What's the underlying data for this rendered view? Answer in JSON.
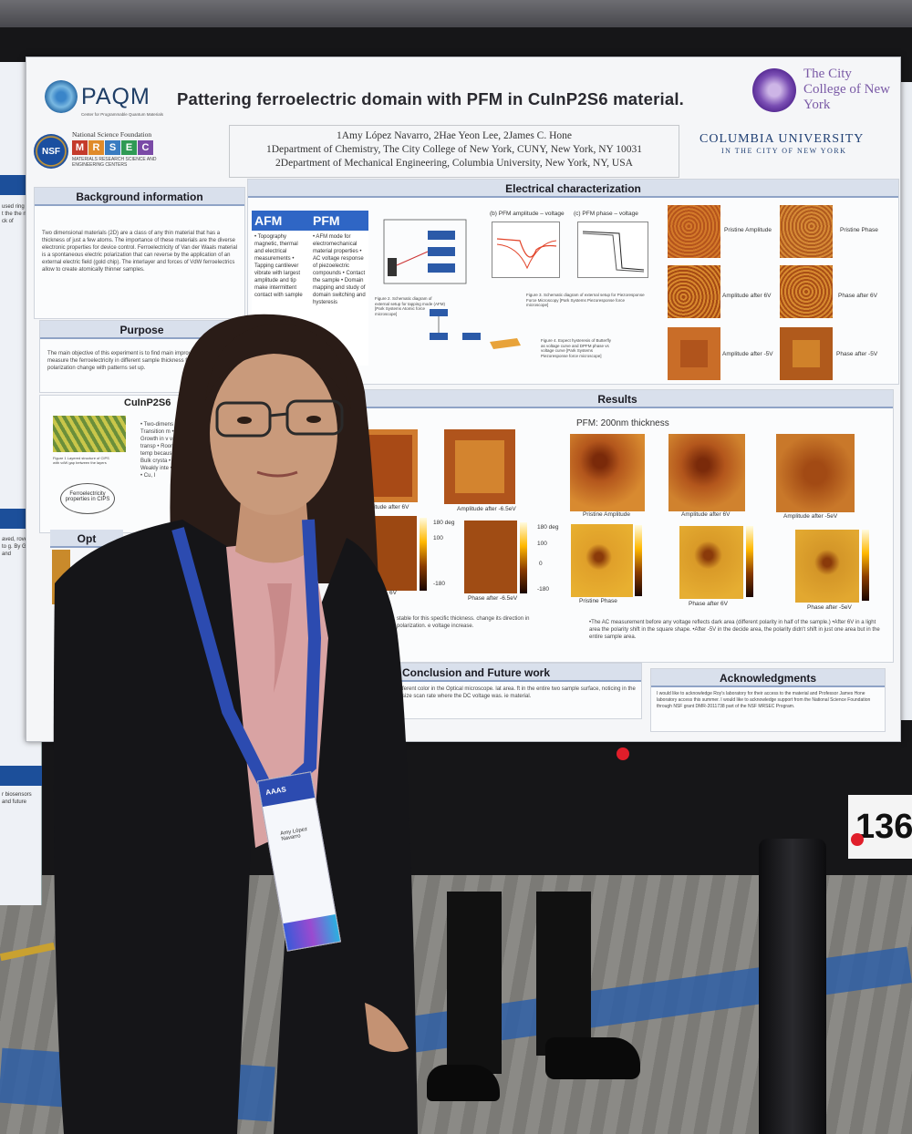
{
  "poster": {
    "title": "Pattering ferroelectric domain with PFM in CuInP2S6 material.",
    "authors_line1": "1Amy López Navarro, 2Hae Yeon Lee, 2James C. Hone",
    "affil_line1": "1Department of Chemistry, The City College of New York, CUNY, New York, NY 10031",
    "affil_line2": "2Department of Mechanical Engineering, Columbia University, New York, NY, USA",
    "logo_paqm": "PAQM",
    "logo_paqm_sub": "Center for Programmable Quantum Materials",
    "logo_nsf": "NSF",
    "nsf_line": "National Science Foundation",
    "mrsec_letters": [
      "M",
      "R",
      "S",
      "E",
      "C"
    ],
    "mrsec_sub": "MATERIALS RESEARCH SCIENCE AND ENGINEERING CENTERS",
    "ccny_name": "The City College of New York",
    "columbia_l1": "COLUMBIA UNIVERSITY",
    "columbia_l2": "IN THE CITY OF NEW YORK",
    "sections": {
      "background": "Background information",
      "purpose": "Purpose",
      "electrical": "Electrical characterization",
      "results": "Results",
      "cuinp2s6": "CuInP2S6",
      "conclusion": "Conclusion and Future work",
      "acknowledgments": "Acknowledgments",
      "optical": "Opt"
    },
    "background_text": "Two dimensional materials (2D) are a class of any thin material that has a thickness of just a few atoms. The importance of these materials are the diverse electronic properties for device control. Ferroelectricity of Van der Waals material is a spontaneous electric polarization that can reverse by the application of an external electric field (gold chip). The interlayer and forces of VdW ferroelectrics allow to create atomically thinner samples.",
    "purpose_text": "The main objective of this experiment is to find main improve PFM imaging and measure the ferroelectricity in different sample thickness focusing on voltage polarization change with patterns set up.",
    "afm": {
      "afm_head": "AFM",
      "pfm_head": "PFM",
      "afm_items": "• Topography magnetic, thermal and electrical measurements • Tapping cantilever vibrate with largest amplitude and tip make intermittent contact with sample",
      "pfm_items": "• AFM mode for electromechanical material properties • AC voltage response of piezoelectric compounds • Contact the sample • Domain mapping and study of domain switching and hysteresis"
    },
    "electrical_labels": {
      "plot_b": "(b) PFM amplitude – voltage",
      "plot_c": "(c) PFM phase – voltage",
      "fig2": "Figure 2. Schematic diagram of external setup for tapping mode (AFM) [Park Systems Atomic force microscope]",
      "fig3": "Figure 3. Schematic diagram of external setup for Piezoresponse Force Microscopy [Park Systems Piezoresponse force microscope]",
      "fig4": "Figure 4. Expect hysteresis of Butterfly as voltage curve and DPFM phase vs voltage curve [Park Systems Piezoresponse force microscope]",
      "tile_labels": [
        "Pristine Amplitude",
        "Pristine Phase",
        "Amplitude after 6V",
        "Phase after 6V",
        "Amplitude after -5V",
        "Phase after -5V"
      ]
    },
    "results": {
      "left_header": "ess",
      "right_header": "PFM: 200nm thickness",
      "left_top_labels": [
        "Amplitude after 6V",
        "Amplitude after -6.5eV"
      ],
      "left_bottom_labels": [
        "6V",
        "Phase after -6.5eV"
      ],
      "colorbar_ticks": [
        "180 deg",
        "100",
        "0",
        "-100",
        "-180"
      ],
      "right_top_labels": [
        "Pristine Amplitude",
        "Amplitude after 6V",
        "Amplitude after -5eV"
      ],
      "right_bottom_labels": [
        "Pristine Phase",
        "Phase after 6V",
        "Phase after -5eV"
      ],
      "note_left": "stable for this specific thickness. change its direction in polarization. e voltage increase.",
      "note_right": "•The AC measurement before any voltage reflects dark area (different polarity in half of the sample.) •After 6V in a light area the polarity shift in the square shape. •After -5V in the decide area, the polarity didn't shift in just one area but in the entire sample area."
    },
    "conclusion_text": "ferent color in the Optical microscope. lat area. ft in the entire two sample surface, noticing in the size scan rate where the DC voltage was. ie material.",
    "ack_text": "I would like to acknowledge Roy's laboratory for their access to the material and Professor James Hone laboratory access this summer. I would like to acknowledge support from the National Science Foundation through NSF grant DMR-2011738 part of the NSF MRSEC Program.",
    "cuinp2s6_items": "• Two-dimens • Transition m • Growth in v vapor transp • Room temp because C • Bulk crysta • Weakly inte • Interl • Cu, I",
    "ferro_bubble": "Ferroelectricity properties in CIPS",
    "fig1": "Figure 1 Layered structure of CIPS with vdW gap between the layers"
  },
  "booth_number": "136",
  "badge": {
    "org": "AAAS",
    "name": "Amy López Navarro",
    "lanyard": "AAAS"
  },
  "colors": {
    "section_head_bg": "#d9e0ec",
    "blue_accent": "#2f66c5",
    "lanyard_blue": "#2c4bb0",
    "jacket": "#151518",
    "blouse": "#d9a3a3",
    "phase_orange": "#d9a020",
    "amplitude_brown": "#a64a14"
  }
}
